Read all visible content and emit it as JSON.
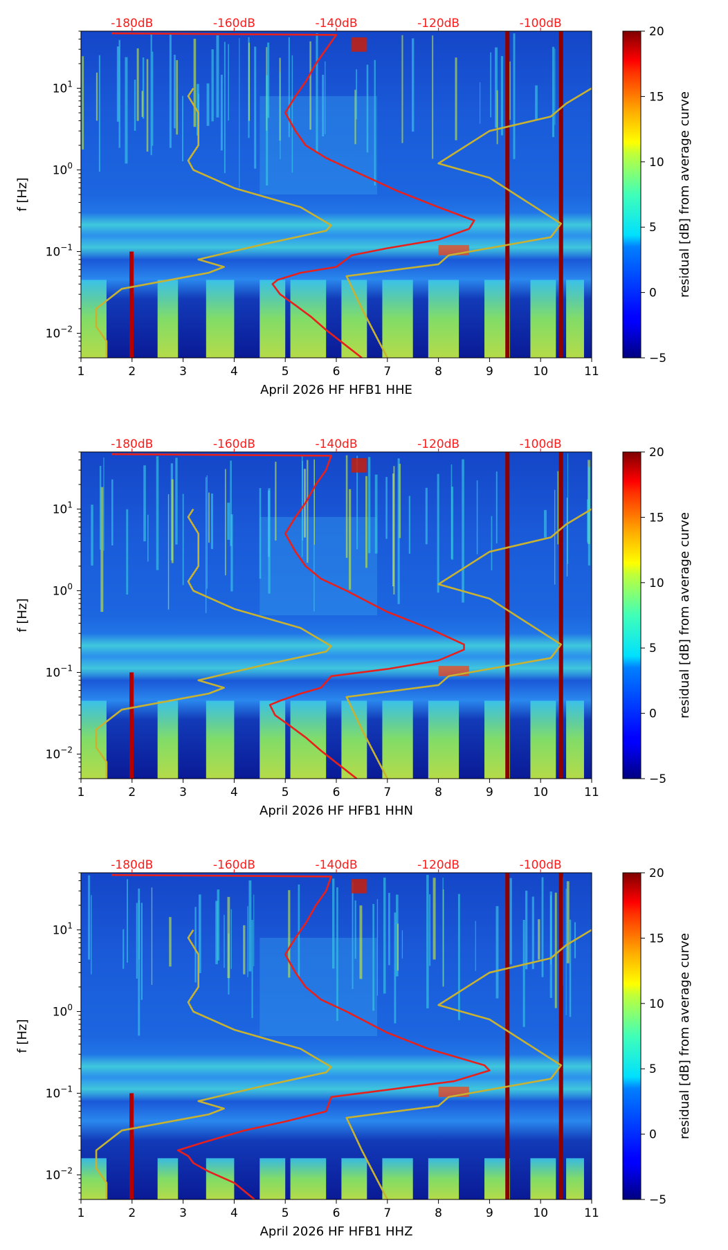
{
  "chart_data": [
    {
      "type": "heatmap",
      "title": "April 2026 HF HFB1  HHE",
      "xlabel": "April 2026 HF HFB1  HHE",
      "ylabel": "f [Hz]",
      "xlim": [
        1,
        11
      ],
      "ylim": [
        0.005,
        50
      ],
      "yscale": "log",
      "x_ticks": [
        "1",
        "2",
        "3",
        "4",
        "5",
        "6",
        "7",
        "8",
        "9",
        "10",
        "11"
      ],
      "y_ticks": [
        {
          "v": 0.01,
          "b": "10",
          "e": "−2"
        },
        {
          "v": 0.1,
          "b": "10",
          "e": "−1"
        },
        {
          "v": 1,
          "b": "10",
          "e": "0"
        },
        {
          "v": 10,
          "b": "10",
          "e": "1"
        }
      ],
      "db_scale": [
        {
          "x": 2.0,
          "label": "-180dB"
        },
        {
          "x": 4.0,
          "label": "-160dB"
        },
        {
          "x": 6.0,
          "label": "-140dB"
        },
        {
          "x": 8.0,
          "label": "-120dB"
        },
        {
          "x": 10.0,
          "label": "-100dB"
        }
      ],
      "colorbar": {
        "label": "residual [dB] from average curve",
        "range": [
          -5,
          20
        ],
        "ticks": [
          "−5",
          "0",
          "5",
          "10",
          "15",
          "20"
        ]
      },
      "vertical_lines_x": [
        9.35,
        10.4
      ],
      "series": [
        {
          "name": "red_curve",
          "color": "#e8201c",
          "points": [
            [
              6.5,
              0.005
            ],
            [
              6.2,
              0.007
            ],
            [
              5.8,
              0.011
            ],
            [
              5.5,
              0.016
            ],
            [
              5.2,
              0.022
            ],
            [
              4.9,
              0.03
            ],
            [
              4.75,
              0.04
            ],
            [
              4.85,
              0.045
            ],
            [
              5.3,
              0.055
            ],
            [
              6.0,
              0.065
            ],
            [
              6.3,
              0.09
            ],
            [
              7.0,
              0.11
            ],
            [
              8.0,
              0.14
            ],
            [
              8.6,
              0.19
            ],
            [
              8.7,
              0.24
            ],
            [
              8.0,
              0.35
            ],
            [
              7.2,
              0.55
            ],
            [
              6.3,
              1.0
            ],
            [
              5.8,
              1.4
            ],
            [
              5.4,
              2.0
            ],
            [
              5.2,
              3.0
            ],
            [
              5.0,
              5.0
            ],
            [
              5.2,
              8.0
            ],
            [
              5.4,
              12.0
            ],
            [
              5.6,
              20.0
            ],
            [
              5.8,
              30.0
            ],
            [
              6.0,
              45.0
            ],
            [
              1.6,
              47.0
            ]
          ]
        },
        {
          "name": "yellow_curve_1",
          "color": "#c8b232",
          "points": [
            [
              1.5,
              0.005
            ],
            [
              1.5,
              0.008
            ],
            [
              1.3,
              0.012
            ],
            [
              1.3,
              0.02
            ],
            [
              1.8,
              0.035
            ],
            [
              3.5,
              0.055
            ],
            [
              3.8,
              0.065
            ],
            [
              3.3,
              0.08
            ],
            [
              4.5,
              0.12
            ],
            [
              5.8,
              0.18
            ],
            [
              5.9,
              0.21
            ],
            [
              5.3,
              0.35
            ],
            [
              4.0,
              0.6
            ],
            [
              3.2,
              1.0
            ],
            [
              3.1,
              1.3
            ],
            [
              3.3,
              2.0
            ],
            [
              3.3,
              5.0
            ],
            [
              3.1,
              8.0
            ],
            [
              3.2,
              10.0
            ]
          ]
        },
        {
          "name": "yellow_curve_2",
          "color": "#c8b232",
          "points": [
            [
              7.0,
              0.005
            ],
            [
              6.5,
              0.02
            ],
            [
              6.2,
              0.05
            ],
            [
              8.0,
              0.07
            ],
            [
              8.2,
              0.09
            ],
            [
              10.2,
              0.15
            ],
            [
              10.4,
              0.22
            ],
            [
              9.0,
              0.8
            ],
            [
              8.0,
              1.2
            ],
            [
              9.0,
              3.0
            ],
            [
              10.2,
              4.5
            ],
            [
              10.5,
              6.5
            ],
            [
              11.0,
              10.0
            ]
          ]
        }
      ]
    },
    {
      "type": "heatmap",
      "title": "April 2026 HF HFB1  HHN",
      "xlabel": "April 2026 HF HFB1  HHN",
      "ylabel": "f [Hz]",
      "xlim": [
        1,
        11
      ],
      "ylim": [
        0.005,
        50
      ],
      "yscale": "log",
      "x_ticks": [
        "1",
        "2",
        "3",
        "4",
        "5",
        "6",
        "7",
        "8",
        "9",
        "10",
        "11"
      ],
      "y_ticks": [
        {
          "v": 0.01,
          "b": "10",
          "e": "−2"
        },
        {
          "v": 0.1,
          "b": "10",
          "e": "−1"
        },
        {
          "v": 1,
          "b": "10",
          "e": "0"
        },
        {
          "v": 10,
          "b": "10",
          "e": "1"
        }
      ],
      "db_scale": [
        {
          "x": 2.0,
          "label": "-180dB"
        },
        {
          "x": 4.0,
          "label": "-160dB"
        },
        {
          "x": 6.0,
          "label": "-140dB"
        },
        {
          "x": 8.0,
          "label": "-120dB"
        },
        {
          "x": 10.0,
          "label": "-100dB"
        }
      ],
      "colorbar": {
        "label": "residual [dB] from average curve",
        "range": [
          -5,
          20
        ],
        "ticks": [
          "−5",
          "0",
          "5",
          "10",
          "15",
          "20"
        ]
      },
      "vertical_lines_x": [
        9.35,
        10.4
      ],
      "series": [
        {
          "name": "red_curve",
          "color": "#e8201c",
          "points": [
            [
              6.4,
              0.005
            ],
            [
              6.1,
              0.007
            ],
            [
              5.7,
              0.011
            ],
            [
              5.4,
              0.016
            ],
            [
              5.1,
              0.022
            ],
            [
              4.8,
              0.03
            ],
            [
              4.7,
              0.04
            ],
            [
              4.9,
              0.045
            ],
            [
              5.3,
              0.055
            ],
            [
              5.7,
              0.065
            ],
            [
              5.9,
              0.09
            ],
            [
              7.0,
              0.11
            ],
            [
              8.0,
              0.14
            ],
            [
              8.5,
              0.19
            ],
            [
              8.5,
              0.22
            ],
            [
              7.8,
              0.35
            ],
            [
              7.0,
              0.55
            ],
            [
              6.2,
              1.0
            ],
            [
              5.7,
              1.4
            ],
            [
              5.4,
              2.0
            ],
            [
              5.2,
              3.0
            ],
            [
              5.0,
              5.0
            ],
            [
              5.2,
              8.0
            ],
            [
              5.4,
              12.0
            ],
            [
              5.6,
              20.0
            ],
            [
              5.8,
              30.0
            ],
            [
              5.9,
              45.0
            ],
            [
              1.6,
              47.0
            ]
          ]
        },
        {
          "name": "yellow_curve_1",
          "color": "#c8b232",
          "points": [
            [
              1.5,
              0.005
            ],
            [
              1.5,
              0.008
            ],
            [
              1.3,
              0.012
            ],
            [
              1.3,
              0.02
            ],
            [
              1.8,
              0.035
            ],
            [
              3.5,
              0.055
            ],
            [
              3.8,
              0.065
            ],
            [
              3.3,
              0.08
            ],
            [
              4.5,
              0.12
            ],
            [
              5.8,
              0.18
            ],
            [
              5.9,
              0.21
            ],
            [
              5.3,
              0.35
            ],
            [
              4.0,
              0.6
            ],
            [
              3.2,
              1.0
            ],
            [
              3.1,
              1.3
            ],
            [
              3.3,
              2.0
            ],
            [
              3.3,
              5.0
            ],
            [
              3.1,
              8.0
            ],
            [
              3.2,
              10.0
            ]
          ]
        },
        {
          "name": "yellow_curve_2",
          "color": "#c8b232",
          "points": [
            [
              7.0,
              0.005
            ],
            [
              6.5,
              0.02
            ],
            [
              6.2,
              0.05
            ],
            [
              8.0,
              0.07
            ],
            [
              8.2,
              0.09
            ],
            [
              10.2,
              0.15
            ],
            [
              10.4,
              0.22
            ],
            [
              9.0,
              0.8
            ],
            [
              8.0,
              1.2
            ],
            [
              9.0,
              3.0
            ],
            [
              10.2,
              4.5
            ],
            [
              10.5,
              6.5
            ],
            [
              11.0,
              10.0
            ]
          ]
        }
      ]
    },
    {
      "type": "heatmap",
      "title": "April 2026 HF HFB1  HHZ",
      "xlabel": "April 2026 HF HFB1  HHZ",
      "ylabel": "f [Hz]",
      "xlim": [
        1,
        11
      ],
      "ylim": [
        0.005,
        50
      ],
      "yscale": "log",
      "x_ticks": [
        "1",
        "2",
        "3",
        "4",
        "5",
        "6",
        "7",
        "8",
        "9",
        "10",
        "11"
      ],
      "y_ticks": [
        {
          "v": 0.01,
          "b": "10",
          "e": "−2"
        },
        {
          "v": 0.1,
          "b": "10",
          "e": "−1"
        },
        {
          "v": 1,
          "b": "10",
          "e": "0"
        },
        {
          "v": 10,
          "b": "10",
          "e": "1"
        }
      ],
      "db_scale": [
        {
          "x": 2.0,
          "label": "-180dB"
        },
        {
          "x": 4.0,
          "label": "-160dB"
        },
        {
          "x": 6.0,
          "label": "-140dB"
        },
        {
          "x": 8.0,
          "label": "-120dB"
        },
        {
          "x": 10.0,
          "label": "-100dB"
        }
      ],
      "colorbar": {
        "label": "residual [dB] from average curve",
        "range": [
          -5,
          20
        ],
        "ticks": [
          "−5",
          "0",
          "5",
          "10",
          "15",
          "20"
        ]
      },
      "vertical_lines_x": [
        9.35,
        10.4
      ],
      "series": [
        {
          "name": "red_curve",
          "color": "#e8201c",
          "points": [
            [
              4.4,
              0.005
            ],
            [
              4.0,
              0.008
            ],
            [
              3.5,
              0.011
            ],
            [
              3.2,
              0.014
            ],
            [
              3.1,
              0.017
            ],
            [
              2.9,
              0.02
            ],
            [
              3.4,
              0.025
            ],
            [
              4.2,
              0.035
            ],
            [
              5.0,
              0.045
            ],
            [
              5.8,
              0.06
            ],
            [
              5.9,
              0.09
            ],
            [
              7.0,
              0.11
            ],
            [
              8.3,
              0.14
            ],
            [
              9.0,
              0.19
            ],
            [
              8.9,
              0.22
            ],
            [
              7.8,
              0.35
            ],
            [
              7.0,
              0.55
            ],
            [
              6.2,
              1.0
            ],
            [
              5.7,
              1.4
            ],
            [
              5.4,
              2.0
            ],
            [
              5.2,
              3.0
            ],
            [
              5.0,
              5.0
            ],
            [
              5.2,
              8.0
            ],
            [
              5.4,
              12.0
            ],
            [
              5.6,
              20.0
            ],
            [
              5.8,
              30.0
            ],
            [
              5.9,
              45.0
            ],
            [
              1.6,
              47.0
            ]
          ]
        },
        {
          "name": "yellow_curve_1",
          "color": "#c8b232",
          "points": [
            [
              1.5,
              0.005
            ],
            [
              1.5,
              0.008
            ],
            [
              1.3,
              0.012
            ],
            [
              1.3,
              0.02
            ],
            [
              1.8,
              0.035
            ],
            [
              3.5,
              0.055
            ],
            [
              3.8,
              0.065
            ],
            [
              3.3,
              0.08
            ],
            [
              4.5,
              0.12
            ],
            [
              5.8,
              0.18
            ],
            [
              5.9,
              0.21
            ],
            [
              5.3,
              0.35
            ],
            [
              4.0,
              0.6
            ],
            [
              3.2,
              1.0
            ],
            [
              3.1,
              1.3
            ],
            [
              3.3,
              2.0
            ],
            [
              3.3,
              5.0
            ],
            [
              3.1,
              8.0
            ],
            [
              3.2,
              10.0
            ]
          ]
        },
        {
          "name": "yellow_curve_2",
          "color": "#c8b232",
          "points": [
            [
              7.0,
              0.005
            ],
            [
              6.5,
              0.02
            ],
            [
              6.2,
              0.05
            ],
            [
              8.0,
              0.07
            ],
            [
              8.2,
              0.09
            ],
            [
              10.2,
              0.15
            ],
            [
              10.4,
              0.22
            ],
            [
              9.0,
              0.8
            ],
            [
              8.0,
              1.2
            ],
            [
              9.0,
              3.0
            ],
            [
              10.2,
              4.5
            ],
            [
              10.5,
              6.5
            ],
            [
              11.0,
              10.0
            ]
          ]
        }
      ]
    }
  ]
}
